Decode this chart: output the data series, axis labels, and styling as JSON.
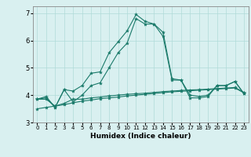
{
  "xlabel": "Humidex (Indice chaleur)",
  "ylabel": "",
  "background_color": "#d9f0f0",
  "line_color": "#1a7a6a",
  "xlim": [
    -0.5,
    23.5
  ],
  "ylim": [
    3.0,
    7.25
  ],
  "yticks": [
    3,
    4,
    5,
    6,
    7
  ],
  "xticks": [
    0,
    1,
    2,
    3,
    4,
    5,
    6,
    7,
    8,
    9,
    10,
    11,
    12,
    13,
    14,
    15,
    16,
    17,
    18,
    19,
    20,
    21,
    22,
    23
  ],
  "series": [
    [
      3.85,
      3.95,
      3.55,
      4.2,
      4.15,
      4.35,
      4.8,
      4.85,
      5.55,
      5.95,
      6.35,
      6.95,
      6.7,
      6.6,
      6.3,
      4.6,
      4.55,
      4.0,
      3.95,
      4.0,
      4.35,
      4.35,
      4.5,
      4.05
    ],
    [
      3.85,
      3.9,
      3.55,
      4.2,
      3.75,
      4.0,
      4.35,
      4.45,
      5.0,
      5.55,
      5.9,
      6.8,
      6.6,
      6.6,
      6.15,
      4.55,
      4.55,
      3.9,
      3.9,
      3.95,
      4.35,
      4.35,
      4.5,
      4.05
    ],
    [
      3.85,
      3.85,
      3.6,
      3.7,
      3.85,
      3.85,
      3.9,
      3.93,
      3.97,
      4.0,
      4.03,
      4.05,
      4.07,
      4.1,
      4.13,
      4.15,
      4.17,
      4.19,
      4.2,
      4.22,
      4.24,
      4.26,
      4.28,
      4.1
    ],
    [
      3.5,
      3.55,
      3.6,
      3.65,
      3.72,
      3.78,
      3.82,
      3.87,
      3.9,
      3.93,
      3.97,
      4.0,
      4.03,
      4.06,
      4.09,
      4.12,
      4.14,
      4.16,
      4.18,
      4.2,
      4.22,
      4.24,
      4.26,
      4.08
    ]
  ]
}
